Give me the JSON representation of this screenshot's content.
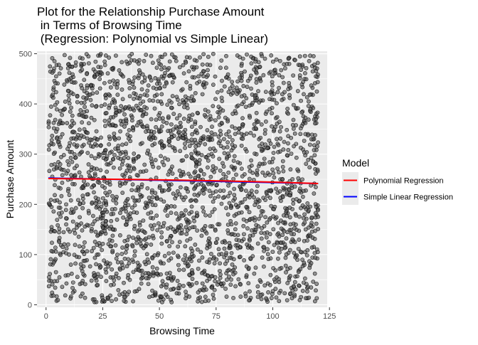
{
  "chart_data": {
    "type": "scatter",
    "title_lines": [
      "Plot for the Relationship Purchase Amount",
      " in Terms of Browsing Time",
      " (Regression: Polynomial vs Simple Linear)"
    ],
    "xlabel": "Browsing Time",
    "ylabel": "Purchase Amount",
    "xlim": [
      -4,
      124
    ],
    "ylim": [
      -5,
      505
    ],
    "x_ticks": [
      0,
      25,
      50,
      75,
      100,
      125
    ],
    "y_ticks": [
      0,
      100,
      200,
      300,
      400,
      500
    ],
    "grid": true,
    "legend": {
      "title": "Model",
      "position": "right",
      "entries": [
        {
          "label": "Polynomial Regression",
          "color": "#ff0000"
        },
        {
          "label": "Simple Linear Regression",
          "color": "#0000ff"
        }
      ]
    },
    "scatter": {
      "n_points": 2500,
      "x_range": [
        1,
        120
      ],
      "y_range": [
        5,
        500
      ],
      "point_fill": "#555555",
      "point_stroke": "#000000",
      "point_opacity": 0.6
    },
    "series": [
      {
        "name": "Polynomial Regression",
        "type": "line",
        "color": "#ff0000",
        "x": [
          1,
          20,
          40,
          60,
          80,
          100,
          120
        ],
        "y": [
          251.5,
          250.5,
          249.5,
          248.2,
          246.5,
          244.3,
          241.5
        ]
      },
      {
        "name": "Simple Linear Regression",
        "type": "line",
        "color": "#0000ff",
        "x": [
          1,
          120
        ],
        "y": [
          252.5,
          241.5
        ]
      }
    ]
  }
}
